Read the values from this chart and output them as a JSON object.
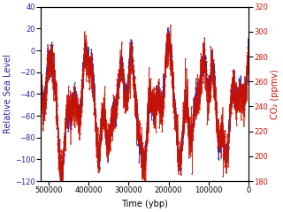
{
  "xlabel": "Time (ybp)",
  "ylabel_left": "Relative Sea Level",
  "ylabel_right": "CO₂ (ppmv)",
  "xlim": [
    520000,
    0
  ],
  "ylim_left": [
    -120,
    40
  ],
  "ylim_right": [
    180,
    320
  ],
  "yticks_left": [
    -120,
    -100,
    -80,
    -60,
    -40,
    -20,
    0,
    20,
    40
  ],
  "yticks_right": [
    180,
    200,
    220,
    240,
    260,
    280,
    300,
    320
  ],
  "xticks": [
    500000,
    400000,
    300000,
    200000,
    100000,
    0
  ],
  "sea_color": "#2222aa",
  "co2_color": "#cc1100",
  "linewidth": 0.5,
  "markersize": 1.2,
  "seed": 42
}
